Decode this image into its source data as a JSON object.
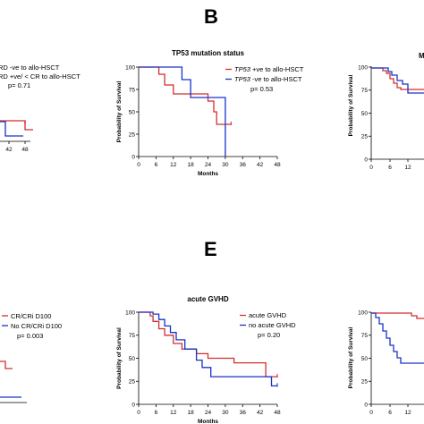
{
  "panel_letters": {
    "top": "B",
    "bottom": "E"
  },
  "colors": {
    "red": "#d32f2f",
    "blue": "#1a33c7",
    "axis": "#000000"
  },
  "chart_data": [
    {
      "id": "tp53",
      "type": "line",
      "title": "TP53 mutation status",
      "xlabel": "Months",
      "ylabel": "Probability of Survival",
      "x_ticks": [
        0,
        6,
        12,
        18,
        24,
        30,
        36,
        42,
        48
      ],
      "y_ticks": [
        0,
        25,
        50,
        75,
        100
      ],
      "xlim": [
        0,
        48
      ],
      "ylim": [
        0,
        100
      ],
      "p_value": "p= 0.53",
      "series": [
        {
          "name_italic": "TP53",
          "name_rest": " +ve to allo-HSCT",
          "color": "red",
          "points": [
            [
              0,
              100
            ],
            [
              7,
              100
            ],
            [
              7,
              92
            ],
            [
              9,
              92
            ],
            [
              9,
              80
            ],
            [
              12,
              80
            ],
            [
              12,
              70
            ],
            [
              24,
              70
            ],
            [
              24,
              62
            ],
            [
              26,
              62
            ],
            [
              26,
              50
            ],
            [
              27,
              50
            ],
            [
              27,
              36
            ],
            [
              32,
              36
            ]
          ]
        },
        {
          "name_italic": "TP53",
          "name_rest": " -ve to allo-HSCT",
          "color": "blue",
          "points": [
            [
              0,
              100
            ],
            [
              15,
              100
            ],
            [
              15,
              86
            ],
            [
              18,
              86
            ],
            [
              18,
              66
            ],
            [
              30,
              66
            ],
            [
              30,
              0
            ]
          ]
        }
      ]
    },
    {
      "id": "gvhd",
      "type": "line",
      "title": "acute GVHD",
      "xlabel": "Months",
      "ylabel": "Probability of Survival",
      "x_ticks": [
        0,
        6,
        12,
        18,
        24,
        30,
        36,
        42,
        48
      ],
      "y_ticks": [
        0,
        25,
        50,
        75,
        100
      ],
      "xlim": [
        0,
        48
      ],
      "ylim": [
        0,
        100
      ],
      "p_value": "p= 0.20",
      "series": [
        {
          "name_italic": "",
          "name_rest": "acute GVHD",
          "color": "red",
          "points": [
            [
              0,
              100
            ],
            [
              4,
              100
            ],
            [
              4,
              96
            ],
            [
              5,
              96
            ],
            [
              5,
              90
            ],
            [
              7,
              90
            ],
            [
              7,
              82
            ],
            [
              9,
              82
            ],
            [
              9,
              75
            ],
            [
              12,
              75
            ],
            [
              12,
              66
            ],
            [
              15,
              66
            ],
            [
              15,
              60
            ],
            [
              20,
              60
            ],
            [
              20,
              55
            ],
            [
              24,
              55
            ],
            [
              24,
              50
            ],
            [
              33,
              50
            ],
            [
              33,
              45
            ],
            [
              44,
              45
            ],
            [
              44,
              30
            ],
            [
              48,
              30
            ]
          ]
        },
        {
          "name_italic": "",
          "name_rest": "no acute GVHD",
          "color": "blue",
          "points": [
            [
              0,
              100
            ],
            [
              5,
              100
            ],
            [
              5,
              98
            ],
            [
              7,
              98
            ],
            [
              7,
              92
            ],
            [
              9,
              92
            ],
            [
              9,
              85
            ],
            [
              11,
              85
            ],
            [
              11,
              78
            ],
            [
              13,
              78
            ],
            [
              13,
              70
            ],
            [
              16,
              70
            ],
            [
              16,
              60
            ],
            [
              20,
              60
            ],
            [
              20,
              48
            ],
            [
              22,
              48
            ],
            [
              22,
              40
            ],
            [
              25,
              40
            ],
            [
              25,
              30
            ],
            [
              46,
              30
            ],
            [
              46,
              20
            ],
            [
              48,
              20
            ]
          ]
        }
      ]
    }
  ],
  "partial_left_top": {
    "legend": [
      "RD -ve to allo-HSCT",
      "RD +ve/ < CR to allo-HSCT"
    ],
    "p_value": "p= 0.71",
    "ticks": [
      "42",
      "48"
    ]
  },
  "partial_left_bottom": {
    "legend": [
      "CR/CRi D100",
      "No CR/CRi D100"
    ],
    "p_value": "p= 0.003"
  },
  "partial_right_top": {
    "title_fragment": "M",
    "ylabel": "Probability of Survival",
    "y_ticks": [
      "100",
      "75",
      "50",
      "25",
      "0"
    ],
    "x_ticks": [
      "0",
      "6",
      "12"
    ]
  },
  "partial_right_bottom": {
    "ylabel": "Probability of Survival",
    "y_ticks": [
      "100",
      "75",
      "50",
      "25",
      "0"
    ],
    "x_ticks": [
      "0",
      "6",
      "12"
    ]
  }
}
